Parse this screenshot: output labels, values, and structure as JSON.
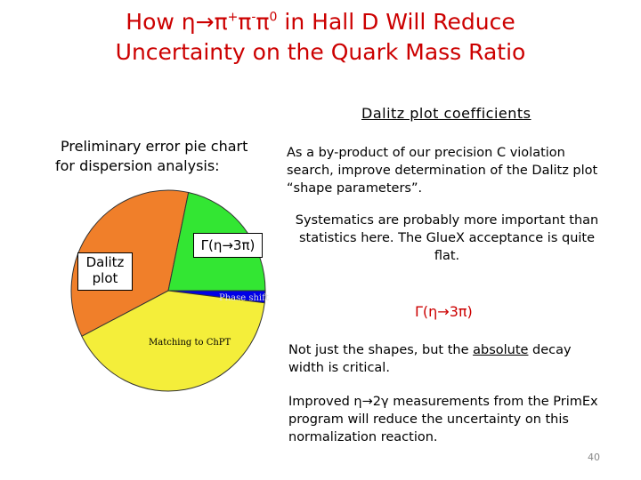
{
  "title": {
    "line1_pre": "How η",
    "arrow": "→",
    "pi_plus": "π",
    "sup_plus": "+",
    "pi_minus": "π",
    "sup_minus": "-",
    "pi_zero": "π",
    "sup_zero": "0",
    "line1_post": " in Hall D Will Reduce",
    "line2": "Uncertainty on the Quark Mass Ratio"
  },
  "dalitz_heading": "Dalitz plot coefficients",
  "pie_caption": {
    "line1": "Preliminary error pie chart",
    "line2": "for dispersion analysis:"
  },
  "pie": {
    "labels": {
      "dalitz_line1": "Dalitz",
      "dalitz_line2": "plot",
      "gamma": "Γ(η→3π)",
      "phase_shift": "Phase shift",
      "matching": "Matching to ChPT"
    },
    "colors": {
      "orange": "#f07f2a",
      "green": "#33e633",
      "blue": "#0000e6",
      "yellow": "#f4ee3a"
    }
  },
  "paragraphs": {
    "p1": "As a by-product of our precision C violation search, improve determination of the Dalitz plot “shape parameters”.",
    "p2": "Systematics are probably more important than statistics here. The GlueX acceptance is quite flat.",
    "gamma_heading": "Γ(η→3π)",
    "p3_pre": "Not just the shapes, but the ",
    "p3_underlined": "absolute",
    "p3_post": " decay width is critical.",
    "p4": "Improved η→2γ measurements from the PrimEx program will reduce the uncertainty on this normalization reaction."
  },
  "page_number": "40"
}
